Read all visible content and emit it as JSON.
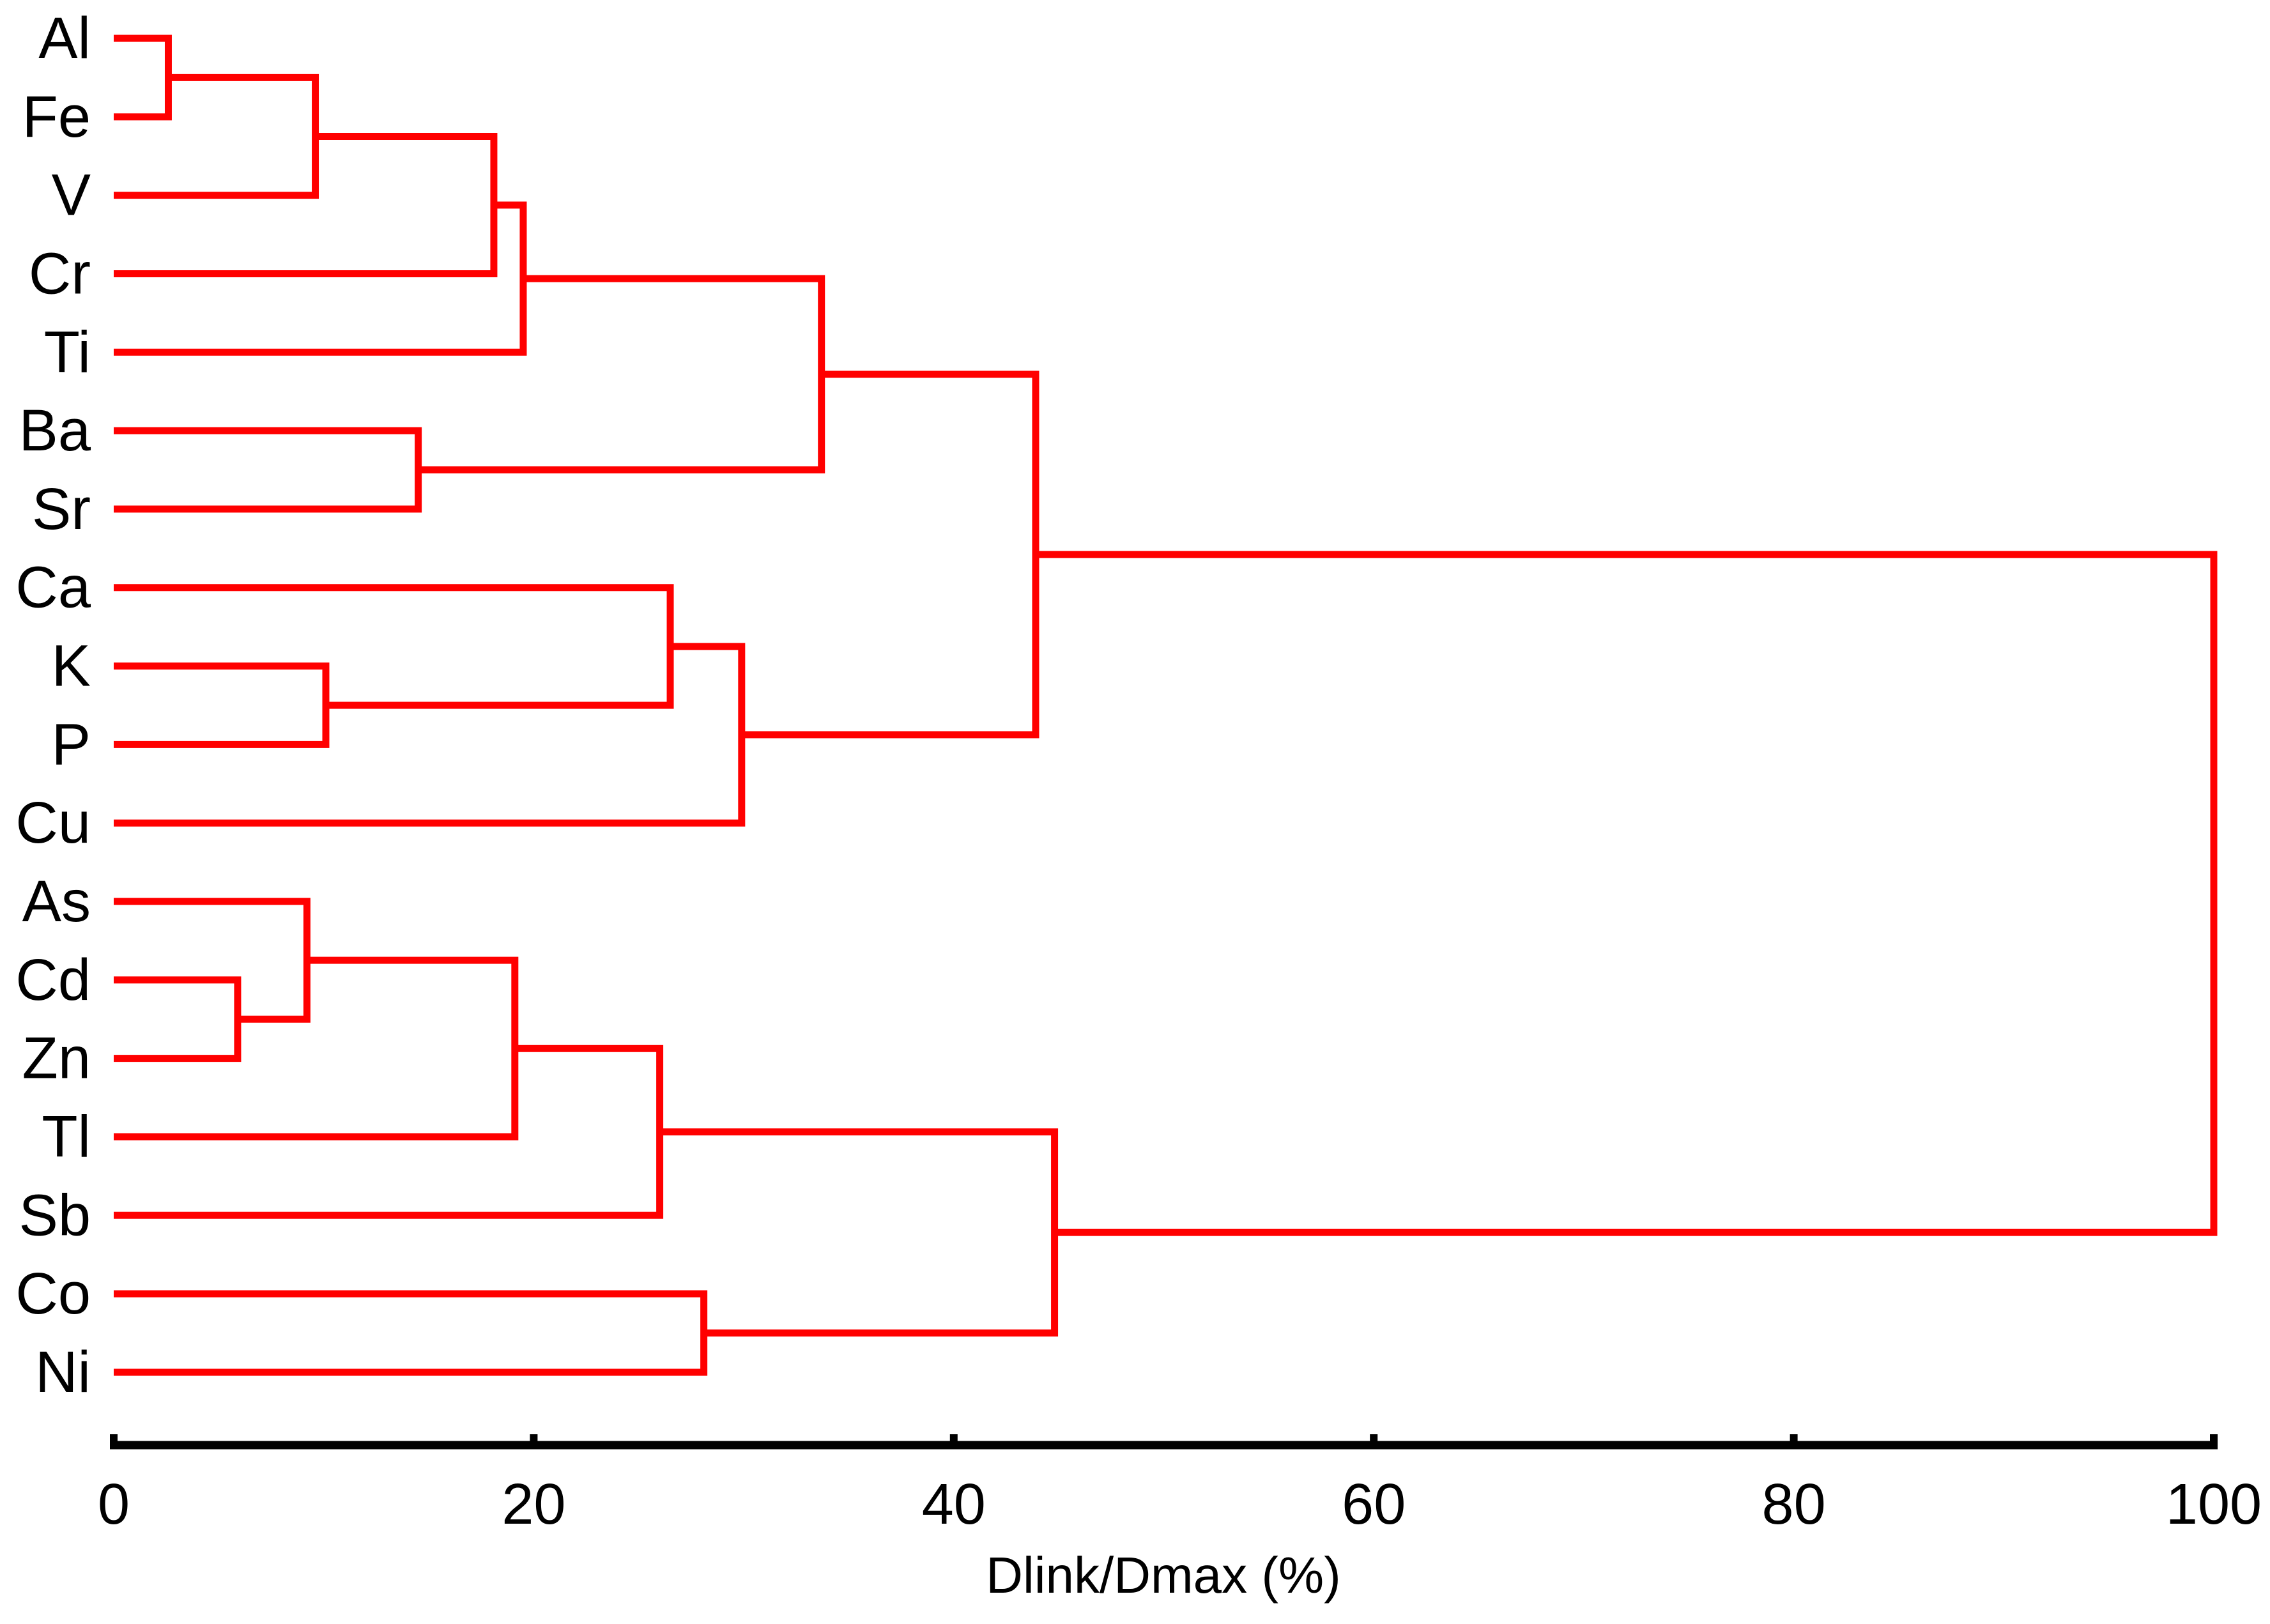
{
  "figure": {
    "background": "#ffffff"
  },
  "chart_data": {
    "type": "dendrogram",
    "orientation": "horizontal",
    "xlabel": "Dlink/Dmax (%)",
    "xlim": [
      0,
      100
    ],
    "x_ticks": [
      0,
      20,
      40,
      60,
      80,
      100
    ],
    "grid": false,
    "legend": "none",
    "line_color": "#ff0000",
    "axis_color": "#000000",
    "text_color": "#000000",
    "leaves": [
      "Al",
      "Fe",
      "V",
      "Cr",
      "Ti",
      "Ba",
      "Sr",
      "Ca",
      "K",
      "P",
      "Cu",
      "As",
      "Cd",
      "Zn",
      "Tl",
      "Sb",
      "Co",
      "Ni"
    ],
    "merges": [
      {
        "id": "n-al-fe",
        "a": "Al",
        "b": "Fe",
        "dist": 2.6
      },
      {
        "id": "n-alfe-v",
        "a": "n-al-fe",
        "b": "V",
        "dist": 9.6
      },
      {
        "id": "n-alfev-cr",
        "a": "n-alfe-v",
        "b": "Cr",
        "dist": 18.1
      },
      {
        "id": "n-alfevcr-ti",
        "a": "n-alfev-cr",
        "b": "Ti",
        "dist": 19.5
      },
      {
        "id": "n-ba-sr",
        "a": "Ba",
        "b": "Sr",
        "dist": 14.5
      },
      {
        "id": "n-upper-a",
        "a": "n-alfevcr-ti",
        "b": "n-ba-sr",
        "dist": 33.7
      },
      {
        "id": "n-k-p",
        "a": "K",
        "b": "P",
        "dist": 10.1
      },
      {
        "id": "n-ca-kp",
        "a": "Ca",
        "b": "n-k-p",
        "dist": 26.5
      },
      {
        "id": "n-cakp-cu",
        "a": "n-ca-kp",
        "b": "Cu",
        "dist": 29.9
      },
      {
        "id": "n-upper",
        "a": "n-upper-a",
        "b": "n-cakp-cu",
        "dist": 43.9
      },
      {
        "id": "n-cd-zn",
        "a": "Cd",
        "b": "Zn",
        "dist": 5.9
      },
      {
        "id": "n-as-cdzn",
        "a": "As",
        "b": "n-cd-zn",
        "dist": 9.2
      },
      {
        "id": "n-ascdzn-tl",
        "a": "n-as-cdzn",
        "b": "Tl",
        "dist": 19.1
      },
      {
        "id": "n-ascdzntl-sb",
        "a": "n-ascdzn-tl",
        "b": "Sb",
        "dist": 26.0
      },
      {
        "id": "n-co-ni",
        "a": "Co",
        "b": "Ni",
        "dist": 28.1
      },
      {
        "id": "n-lower",
        "a": "n-ascdzntl-sb",
        "b": "n-co-ni",
        "dist": 44.8
      },
      {
        "id": "n-root",
        "a": "n-upper",
        "b": "n-lower",
        "dist": 100
      }
    ]
  }
}
